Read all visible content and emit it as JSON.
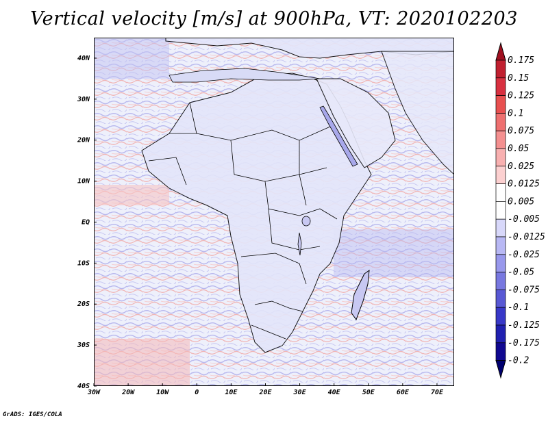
{
  "title": "Vertical velocity [m/s] at 900hPa, VT: 2020102203",
  "credit": "GrADS: IGES/COLA",
  "map": {
    "lat_range": [
      -40,
      45
    ],
    "lon_range": [
      -30,
      75
    ],
    "lat_ticks": [
      "40N",
      "30N",
      "20N",
      "10N",
      "EQ",
      "10S",
      "20S",
      "30S",
      "40S"
    ],
    "lat_values": [
      40,
      30,
      20,
      10,
      0,
      -10,
      -20,
      -30,
      -40
    ],
    "lon_ticks": [
      "30W",
      "20W",
      "10W",
      "0",
      "10E",
      "20E",
      "30E",
      "40E",
      "50E",
      "60E",
      "70E"
    ],
    "lon_values": [
      -30,
      -20,
      -10,
      0,
      10,
      20,
      30,
      40,
      50,
      60,
      70
    ]
  },
  "colorbar": {
    "levels": [
      "0.175",
      "0.15",
      "0.125",
      "0.1",
      "0.075",
      "0.05",
      "0.025",
      "0.0125",
      "0.005",
      "-0.005",
      "-0.0125",
      "-0.025",
      "-0.05",
      "-0.075",
      "-0.1",
      "-0.125",
      "-0.175",
      "-0.2"
    ],
    "colors": [
      "#a01020",
      "#c02030",
      "#d83040",
      "#e85050",
      "#ee7070",
      "#f49090",
      "#f8b0b0",
      "#fcd0d0",
      "#ffffff",
      "#ffffff",
      "#d8d8fa",
      "#b8b8f4",
      "#9898ec",
      "#7878e0",
      "#5858d4",
      "#3838c8",
      "#2020b0",
      "#100890",
      "#000070"
    ]
  }
}
